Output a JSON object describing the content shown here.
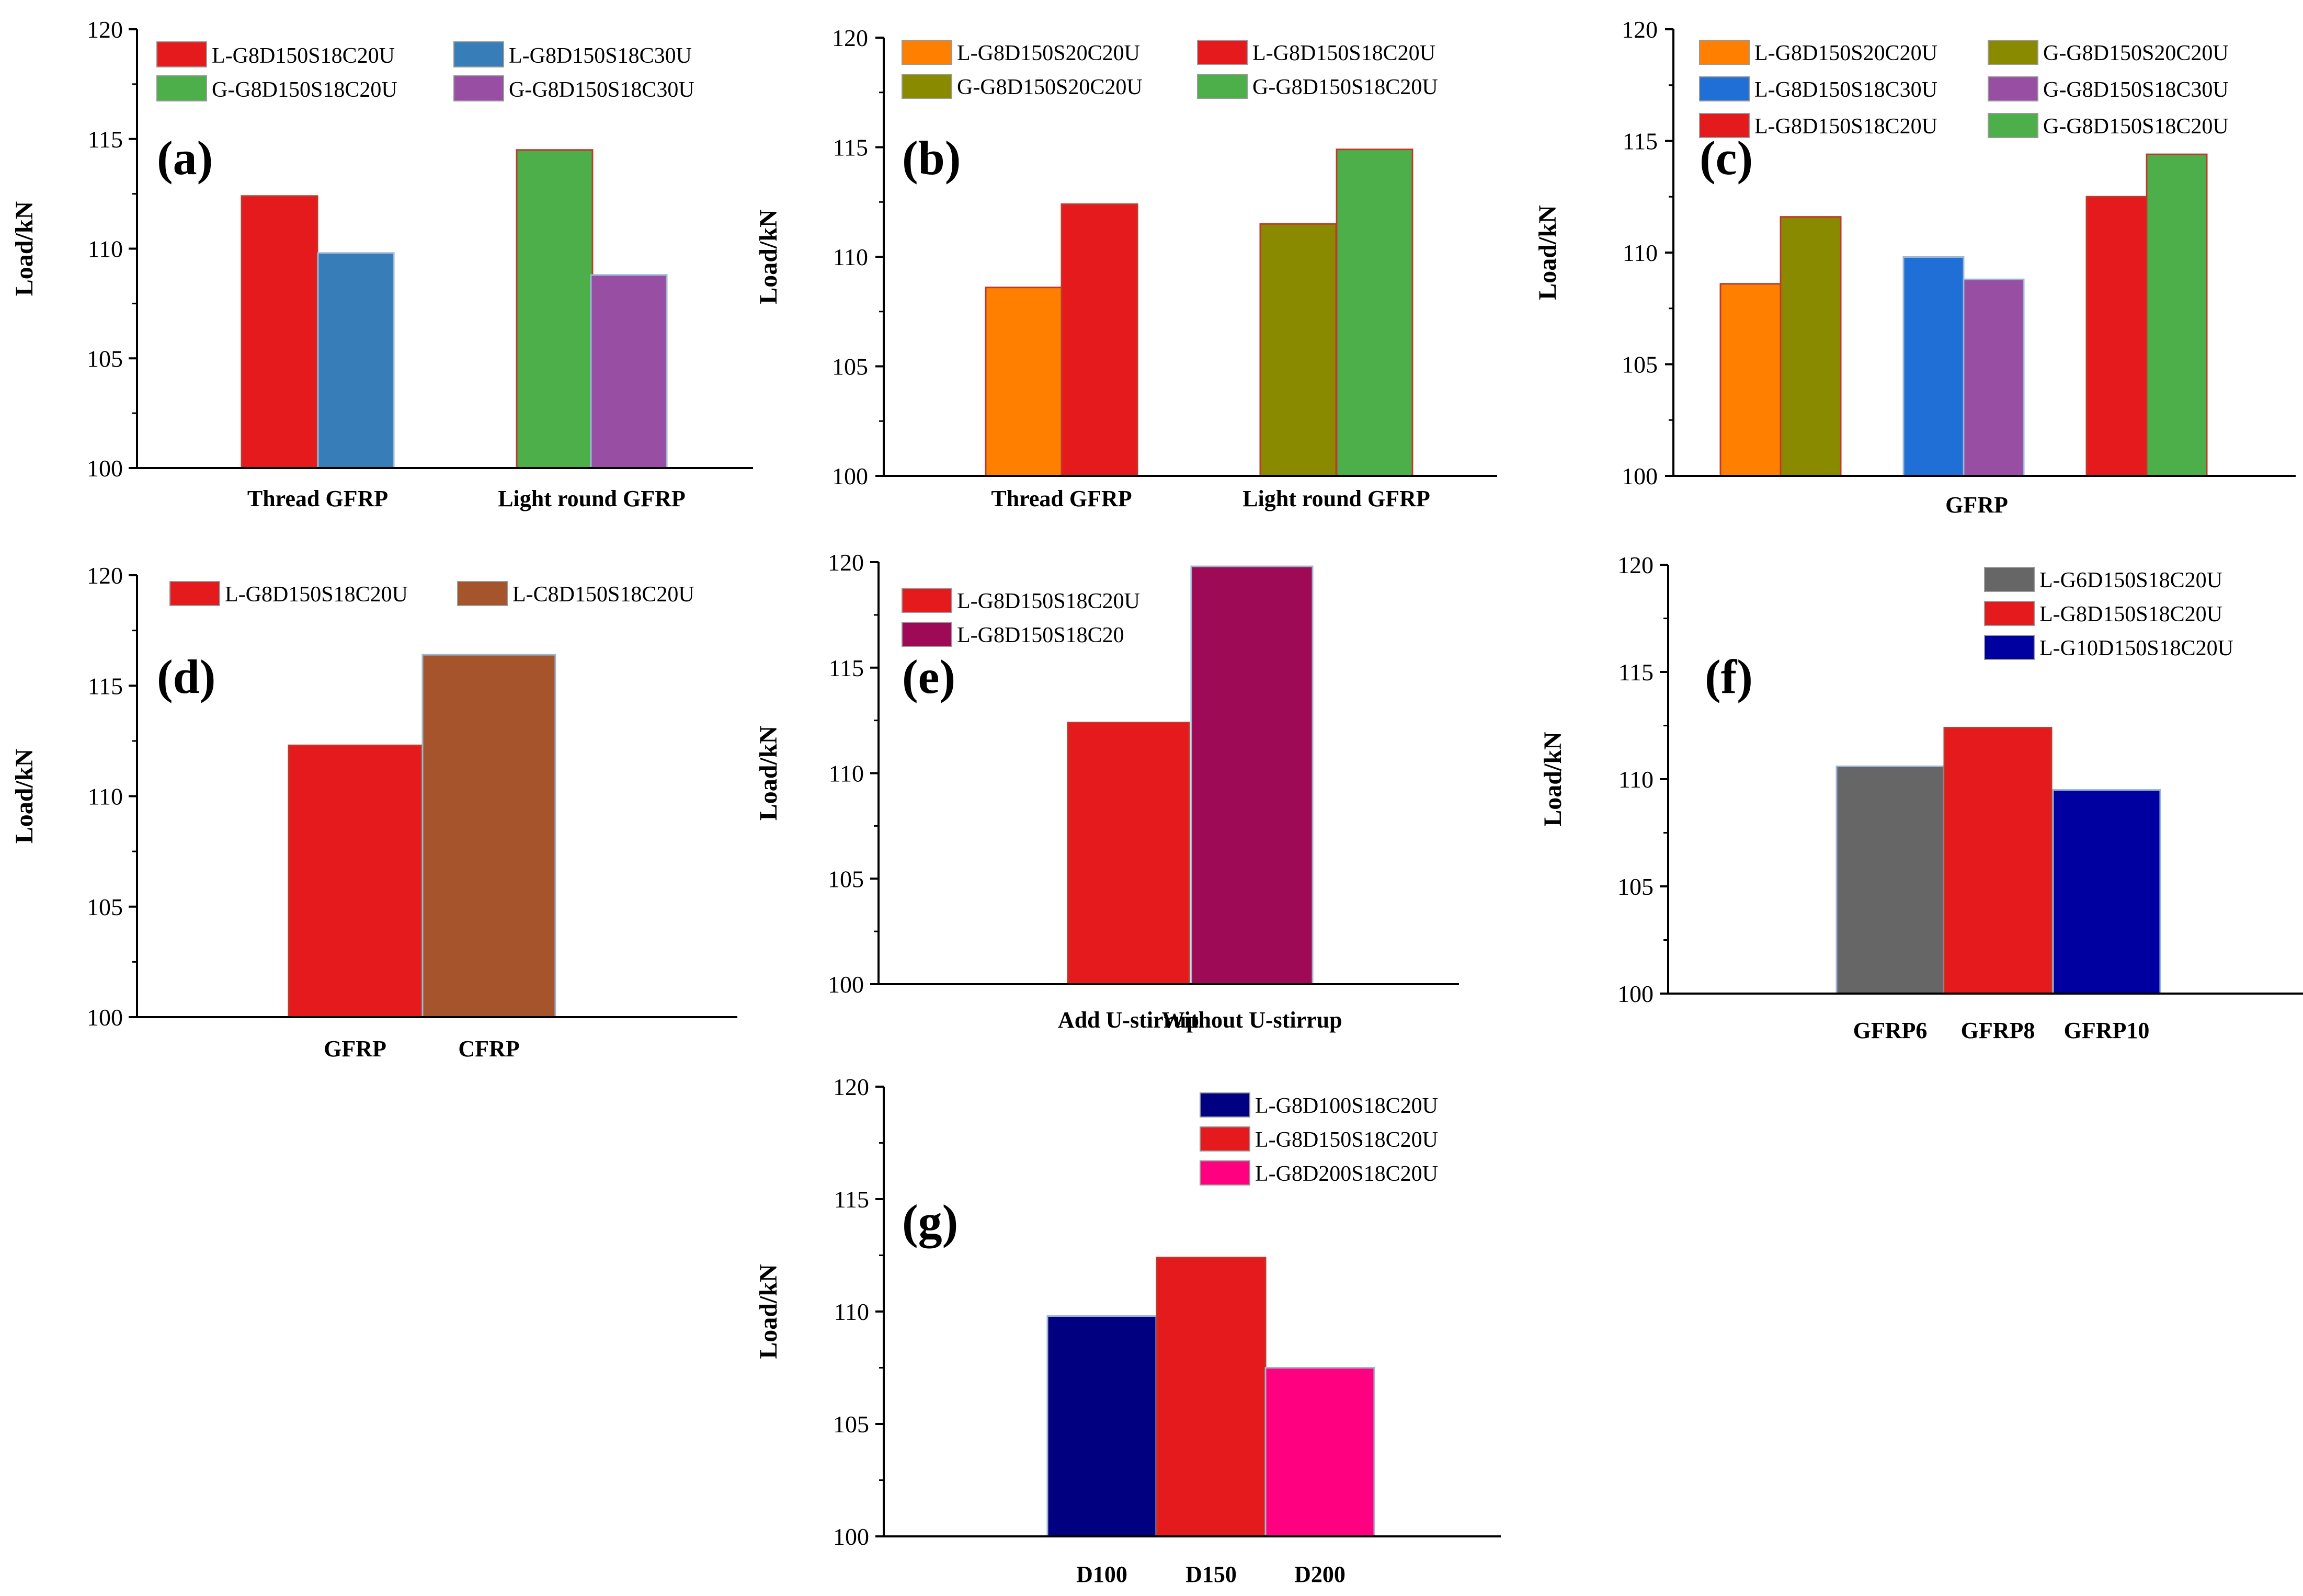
{
  "chart_data": [
    {
      "panel": "(a)",
      "type": "bar",
      "ylabel": "Load/kN",
      "ylim": [
        100,
        120
      ],
      "yticks": [
        "100",
        "105",
        "110",
        "115",
        "120"
      ],
      "categories": [
        "Thread GFRP",
        "Light round GFRP"
      ],
      "series": [
        {
          "name": "L-G8D150S18C20U",
          "color": "#e41a1c",
          "values": [
            112.4,
            null
          ]
        },
        {
          "name": "L-G8D150S18C30U",
          "color": "#377eb8",
          "values": [
            109.8,
            null
          ]
        },
        {
          "name": "G-G8D150S18C20U",
          "color": "#4daf4a",
          "values": [
            null,
            114.5
          ]
        },
        {
          "name": "G-G8D150S18C30U",
          "color": "#984ea3",
          "values": [
            null,
            108.8
          ]
        }
      ]
    },
    {
      "panel": "(b)",
      "type": "bar",
      "ylabel": "Load/kN",
      "ylim": [
        100,
        120
      ],
      "yticks": [
        "100",
        "105",
        "110",
        "115",
        "120"
      ],
      "categories": [
        "Thread GFRP",
        "Light round GFRP"
      ],
      "series": [
        {
          "name": "L-G8D150S20C20U",
          "color": "#ff7f00",
          "values": [
            108.6,
            null
          ]
        },
        {
          "name": "L-G8D150S18C20U",
          "color": "#e41a1c",
          "values": [
            112.4,
            null
          ]
        },
        {
          "name": "G-G8D150S20C20U",
          "color": "#8a8a00",
          "values": [
            null,
            111.5
          ]
        },
        {
          "name": "G-G8D150S18C20U",
          "color": "#4daf4a",
          "values": [
            null,
            114.9
          ]
        }
      ]
    },
    {
      "panel": "(c)",
      "type": "bar",
      "ylabel": "Load/kN",
      "xlabel": "GFRP",
      "ylim": [
        100,
        120
      ],
      "yticks": [
        "100",
        "105",
        "110",
        "115",
        "120"
      ],
      "categories": [
        "",
        "",
        ""
      ],
      "series": [
        {
          "name": "L-G8D150S20C20U",
          "color": "#ff7f00",
          "values": [
            108.6,
            null,
            null
          ]
        },
        {
          "name": "G-G8D150S20C20U",
          "color": "#8a8a00",
          "values": [
            111.6,
            null,
            null
          ]
        },
        {
          "name": "L-G8D150S18C30U",
          "color": "#1f6fd6",
          "values": [
            null,
            109.8,
            null
          ]
        },
        {
          "name": "G-G8D150S18C30U",
          "color": "#984ea3",
          "values": [
            null,
            108.8,
            null
          ]
        },
        {
          "name": "L-G8D150S18C20U",
          "color": "#e41a1c",
          "values": [
            null,
            null,
            112.5
          ]
        },
        {
          "name": "G-G8D150S18C20U",
          "color": "#4daf4a",
          "values": [
            null,
            null,
            114.4
          ]
        }
      ]
    },
    {
      "panel": "(d)",
      "type": "bar",
      "ylabel": "Load/kN",
      "ylim": [
        100,
        120
      ],
      "yticks": [
        "100",
        "105",
        "110",
        "115",
        "120"
      ],
      "categories": [
        "GFRP",
        "CFRP"
      ],
      "series": [
        {
          "name": "L-G8D150S18C20U",
          "color": "#e41a1c",
          "values": [
            112.3,
            null
          ]
        },
        {
          "name": "L-C8D150S18C20U",
          "color": "#a6542b",
          "values": [
            null,
            116.4
          ]
        }
      ]
    },
    {
      "panel": "(e)",
      "type": "bar",
      "ylabel": "Load/kN",
      "ylim": [
        100,
        120
      ],
      "yticks": [
        "100",
        "105",
        "110",
        "115",
        "120"
      ],
      "categories": [
        "Add U-stirrup",
        "Without U-stirrup"
      ],
      "series": [
        {
          "name": "L-G8D150S18C20U",
          "color": "#e41a1c",
          "values": [
            112.4,
            null
          ]
        },
        {
          "name": "L-G8D150S18C20",
          "color": "#9e0a55",
          "values": [
            null,
            119.8
          ]
        }
      ]
    },
    {
      "panel": "(f)",
      "type": "bar",
      "ylabel": "Load/kN",
      "ylim": [
        100,
        120
      ],
      "yticks": [
        "100",
        "105",
        "110",
        "115",
        "120"
      ],
      "categories": [
        "GFRP6",
        "GFRP8",
        "GFRP10"
      ],
      "series": [
        {
          "name": "L-G6D150S18C20U",
          "color": "#666666",
          "values": [
            110.6,
            null,
            null
          ]
        },
        {
          "name": "L-G8D150S18C20U",
          "color": "#e41a1c",
          "values": [
            null,
            112.4,
            null
          ]
        },
        {
          "name": "L-G10D150S18C20U",
          "color": "#0000a0",
          "values": [
            null,
            null,
            109.5
          ]
        }
      ]
    },
    {
      "panel": "(g)",
      "type": "bar",
      "ylabel": "Load/kN",
      "ylim": [
        100,
        120
      ],
      "yticks": [
        "100",
        "105",
        "110",
        "115",
        "120"
      ],
      "categories": [
        "D100",
        "D150",
        "D200"
      ],
      "series": [
        {
          "name": "L-G8D100S18C20U",
          "color": "#000080",
          "values": [
            109.8,
            null,
            null
          ]
        },
        {
          "name": "L-G8D150S18C20U",
          "color": "#e41a1c",
          "values": [
            null,
            112.4,
            null
          ]
        },
        {
          "name": "L-G8D200S18C20U",
          "color": "#ff0080",
          "values": [
            null,
            null,
            107.5
          ]
        }
      ]
    }
  ]
}
